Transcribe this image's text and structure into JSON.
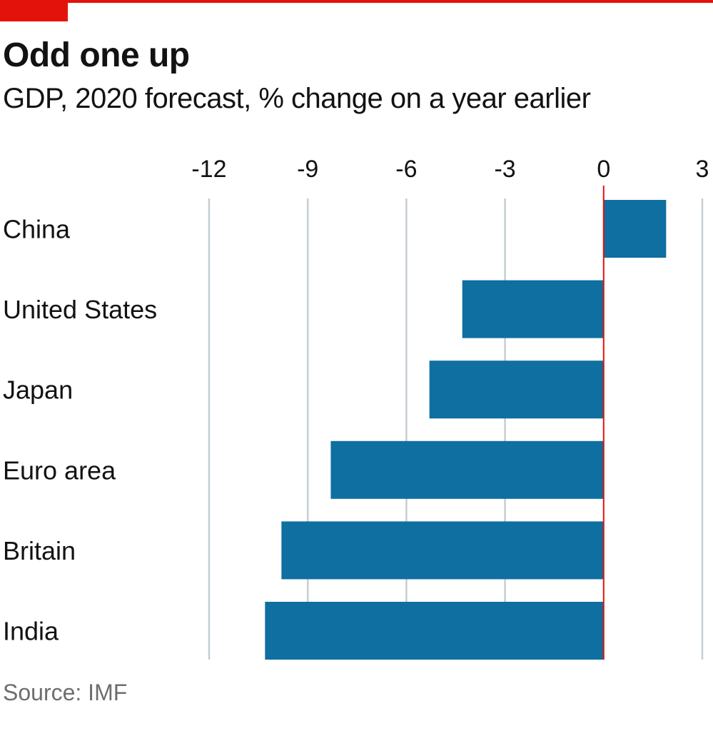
{
  "header": {
    "title": "Odd one up",
    "subtitle": "GDP, 2020 forecast, % change on a year earlier"
  },
  "footer": {
    "source": "Source: IMF"
  },
  "colors": {
    "bar": "#0f6fa1",
    "grid": "#c4ced3",
    "zero_line": "#e3120b",
    "accent": "#e3120b"
  },
  "chart_data": {
    "type": "bar",
    "orientation": "horizontal",
    "categories": [
      "China",
      "United States",
      "Japan",
      "Euro area",
      "Britain",
      "India"
    ],
    "values": [
      1.9,
      -4.3,
      -5.3,
      -8.3,
      -9.8,
      -10.3
    ],
    "xlim": [
      -12,
      3
    ],
    "xticks": [
      -12,
      -9,
      -6,
      -3,
      0,
      3
    ],
    "xtick_labels": [
      "-12",
      "-9",
      "-6",
      "-3",
      "0",
      "3"
    ],
    "xaxis_position": "top",
    "grid": true
  }
}
